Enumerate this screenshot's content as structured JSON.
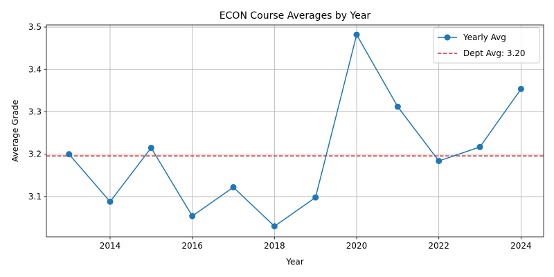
{
  "chart_data": {
    "type": "line",
    "title": "ECON Course Averages by Year",
    "xlabel": "Year",
    "ylabel": "Average Grade",
    "x": [
      2013,
      2014,
      2015,
      2016,
      2017,
      2018,
      2019,
      2020,
      2021,
      2022,
      2023,
      2024
    ],
    "xlim": [
      2012.45,
      2024.55
    ],
    "ylim": [
      3.005,
      3.505
    ],
    "x_ticks": [
      2014,
      2016,
      2018,
      2020,
      2022,
      2024
    ],
    "y_ticks": [
      3.1,
      3.2,
      3.3,
      3.4,
      3.5
    ],
    "x_tick_labels": [
      "2014",
      "2016",
      "2018",
      "2020",
      "2022",
      "2024"
    ],
    "y_tick_labels": [
      "3.1",
      "3.2",
      "3.3",
      "3.4",
      "3.5"
    ],
    "grid": true,
    "legend_position": "upper-right",
    "series": [
      {
        "name": "Yearly Avg",
        "color": "#1f77b4",
        "marker": "circle",
        "style": "solid",
        "values": [
          3.2,
          3.088,
          3.215,
          3.054,
          3.122,
          3.03,
          3.098,
          3.482,
          3.312,
          3.184,
          3.217,
          3.354
        ]
      }
    ],
    "reference_lines": [
      {
        "name": "Dept Avg: 3.20",
        "color": "#d62728",
        "style": "dashed",
        "y": 3.196
      }
    ]
  }
}
